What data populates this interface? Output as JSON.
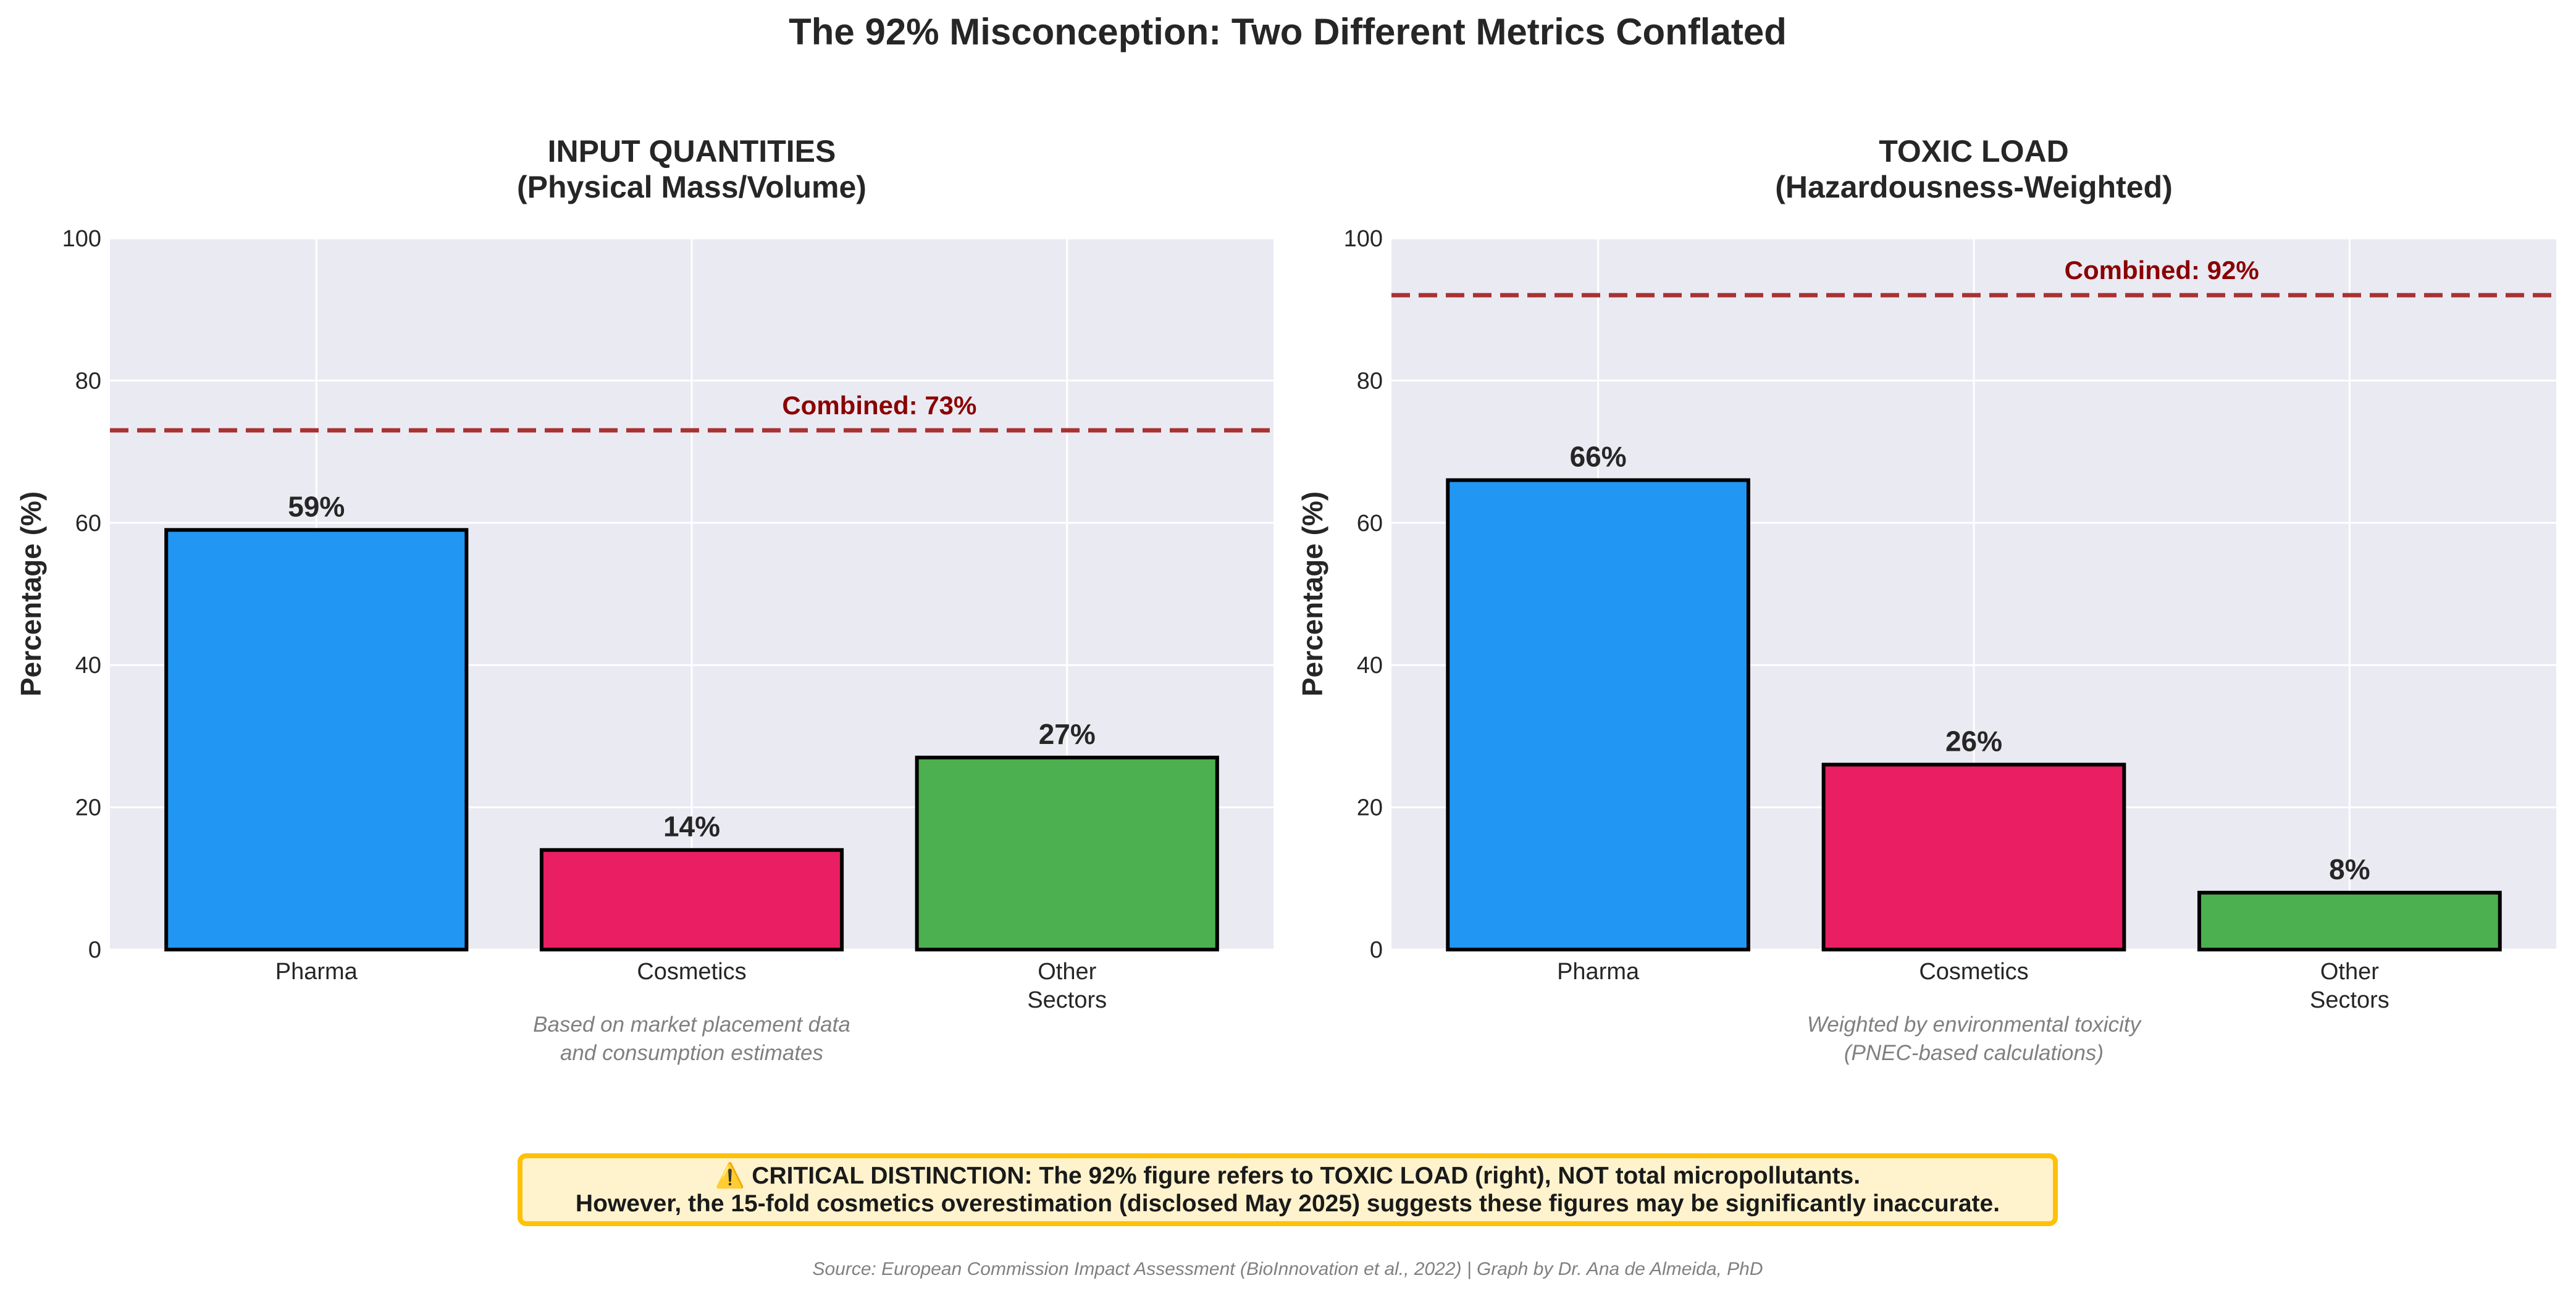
{
  "title": "The 92% Misconception: Two Different Metrics Conflated",
  "chart_data": [
    {
      "type": "bar",
      "title": "INPUT QUANTITIES\n(Physical Mass/Volume)",
      "title_lines": [
        "INPUT QUANTITIES",
        "(Physical Mass/Volume)"
      ],
      "categories": [
        "Pharma",
        "Cosmetics",
        "Other\nSectors"
      ],
      "category_lines": [
        [
          "Pharma"
        ],
        [
          "Cosmetics"
        ],
        [
          "Other",
          "Sectors"
        ]
      ],
      "values": [
        59,
        14,
        27
      ],
      "value_labels": [
        "59%",
        "14%",
        "27%"
      ],
      "colors": [
        "#2196F3",
        "#E91E63",
        "#4CAF50"
      ],
      "ylabel": "Percentage (%)",
      "ylim": [
        0,
        100
      ],
      "yticks": [
        0,
        20,
        40,
        60,
        80,
        100
      ],
      "grid": true,
      "reference_line": {
        "value": 73,
        "label": "Combined: 73%",
        "color": "#a83232",
        "style": "dashed"
      },
      "note_lines": [
        "Based on market placement data",
        "and consumption estimates"
      ]
    },
    {
      "type": "bar",
      "title": "TOXIC LOAD\n(Hazardousness-Weighted)",
      "title_lines": [
        "TOXIC LOAD",
        "(Hazardousness-Weighted)"
      ],
      "categories": [
        "Pharma",
        "Cosmetics",
        "Other\nSectors"
      ],
      "category_lines": [
        [
          "Pharma"
        ],
        [
          "Cosmetics"
        ],
        [
          "Other",
          "Sectors"
        ]
      ],
      "values": [
        66,
        26,
        8
      ],
      "value_labels": [
        "66%",
        "26%",
        "8%"
      ],
      "colors": [
        "#2196F3",
        "#E91E63",
        "#4CAF50"
      ],
      "ylabel": "Percentage (%)",
      "ylim": [
        0,
        100
      ],
      "yticks": [
        0,
        20,
        40,
        60,
        80,
        100
      ],
      "grid": true,
      "reference_line": {
        "value": 92,
        "label": "Combined: 92%",
        "color": "#a83232",
        "style": "dashed"
      },
      "note_lines": [
        "Weighted by environmental toxicity",
        "(PNEC-based calculations)"
      ]
    }
  ],
  "callout": {
    "line1": "⚠️ CRITICAL DISTINCTION: The 92% figure refers to TOXIC LOAD (right), NOT total micropollutants.",
    "line2": "However, the 15-fold cosmetics overestimation (disclosed May 2025) suggests these figures may be significantly inaccurate.",
    "background": "#FFF3CD",
    "border": "#FFC107"
  },
  "source": "Source: European Commission Impact Assessment (BioInnovation et al., 2022) | Graph by Dr. Ana de Almeida, PhD",
  "colors": {
    "plot_background": "#EAEAF2",
    "grid": "#ffffff"
  }
}
